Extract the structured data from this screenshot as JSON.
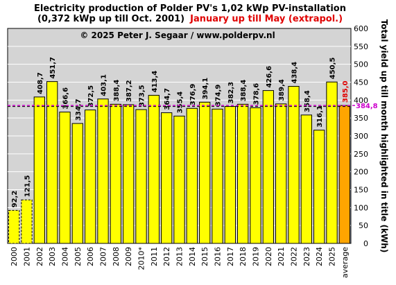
{
  "chart_data": {
    "type": "bar",
    "title_line1": "Electricity production  of Polder PV's 1,02 kWp PV-installation",
    "title_line2_black": "(0,372 kWp up till Oct. 2001)",
    "title_line2_red": "January up till May (extrapol.)",
    "copyright": "© 2025 Peter J. Segaar / www.polderpv.nl",
    "ylabel": "Total yield up till month highlighted in title (kWh)",
    "ylim": [
      0,
      600
    ],
    "yticks": [
      "0",
      "50",
      "100",
      "150",
      "200",
      "250",
      "300",
      "350",
      "400",
      "450",
      "500",
      "550",
      "600"
    ],
    "categories": [
      "2000",
      "2001",
      "2002",
      "2003",
      "2004",
      "2005",
      "2006",
      "2007",
      "2008",
      "2009",
      "2010*",
      "2011",
      "2012",
      "2013",
      "2014",
      "2015",
      "2016",
      "2017",
      "2018",
      "2019",
      "2020",
      "2021",
      "2022",
      "2023",
      "2024",
      "2025",
      "average"
    ],
    "values": [
      92.2,
      121.5,
      408.7,
      451.7,
      366.6,
      334.7,
      372.5,
      403.1,
      388.4,
      387.2,
      373.5,
      413.4,
      364.7,
      355.4,
      376.9,
      394.1,
      374.9,
      382.3,
      388.4,
      378.6,
      426.6,
      389.4,
      438.4,
      358.4,
      316.1,
      450.5,
      385.0
    ],
    "value_labels": [
      "92,2",
      "121,5",
      "408,7",
      "451,7",
      "366,6",
      "334,7",
      "372,5",
      "403,1",
      "388,4",
      "387,2",
      "373,5",
      "413,4",
      "364,7",
      "355,4",
      "376,9",
      "394,1",
      "374,9",
      "382,3",
      "388,4",
      "378,6",
      "426,6",
      "389,4",
      "438,4",
      "358,4",
      "316,1",
      "450,5",
      "385,0"
    ],
    "dashed_bars": [
      "2000",
      "2001"
    ],
    "highlight_bar": "average",
    "average_line": {
      "value": 384.8,
      "label": "384,8"
    },
    "reference_line": {
      "value": 382
    },
    "colors": {
      "bar": "#ffff00",
      "average_bar": "#ffa500",
      "plot_bg": "#d4d4d4",
      "average_line": "#cc00cc",
      "title_red": "#e00000"
    },
    "grid": "horizontal"
  }
}
